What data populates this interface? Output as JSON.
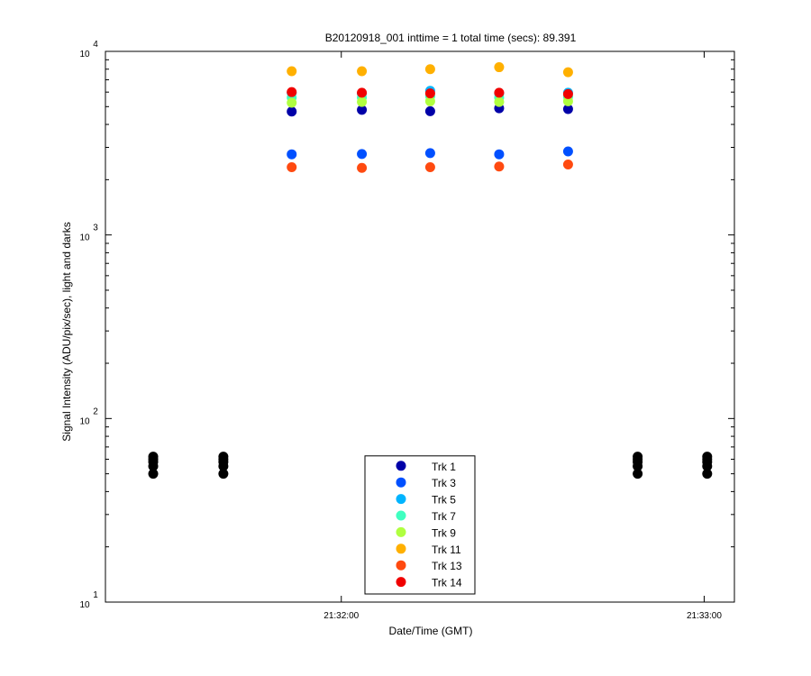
{
  "chart_data": {
    "type": "scatter",
    "title": "B20120918_001 inttime = 1 total time (secs): 89.391",
    "x_label": "Date/Time (GMT)",
    "y_label": "Signal Intensity (ADU/pix/sec), light and darks",
    "log_y": true,
    "grid": false,
    "legend": "bottom",
    "xlim": [
      77481,
      77585
    ],
    "xticks": [
      {
        "value": 77520,
        "label": "21:32:00"
      },
      {
        "value": 77580,
        "label": "21:33:00"
      }
    ],
    "ylim": [
      10,
      10000
    ],
    "yticks": [
      {
        "value": 10,
        "label": "10",
        "exponent": "1"
      },
      {
        "value": 100,
        "label": "10",
        "exponent": "2"
      },
      {
        "value": 1000,
        "label": "10",
        "exponent": "3"
      },
      {
        "value": 10000,
        "label": "10",
        "exponent": "4"
      }
    ],
    "series": [
      {
        "name": "Trk 1",
        "color": "#0000a8",
        "x": [
          77511.8,
          77523.4,
          77534.7,
          77546.1,
          77557.5
        ],
        "values": [
          4700,
          4800,
          4720,
          4900,
          4850
        ]
      },
      {
        "name": "Trk 3",
        "color": "#0050ff",
        "x": [
          77511.8,
          77523.4,
          77534.7,
          77546.1,
          77557.5
        ],
        "values": [
          2750,
          2760,
          2790,
          2750,
          2850
        ]
      },
      {
        "name": "Trk 5",
        "color": "#00b4ff",
        "x": [
          77511.8,
          77523.4,
          77534.7,
          77546.1,
          77557.5
        ],
        "values": [
          5950,
          5900,
          6100,
          5900,
          5950
        ]
      },
      {
        "name": "Trk 7",
        "color": "#40ffc0",
        "x": [
          77511.8,
          77523.4,
          77534.7,
          77546.1,
          77557.5
        ],
        "values": [
          5600,
          5600,
          5700,
          5600,
          5650
        ]
      },
      {
        "name": "Trk 9",
        "color": "#b0ff40",
        "x": [
          77511.8,
          77523.4,
          77534.7,
          77546.1,
          77557.5
        ],
        "values": [
          5250,
          5300,
          5350,
          5300,
          5350
        ]
      },
      {
        "name": "Trk 11",
        "color": "#ffb000",
        "x": [
          77511.8,
          77523.4,
          77534.7,
          77546.1,
          77557.5
        ],
        "values": [
          7800,
          7800,
          8000,
          8200,
          7700
        ]
      },
      {
        "name": "Trk 13",
        "color": "#ff4a10",
        "x": [
          77511.8,
          77523.4,
          77534.7,
          77546.1,
          77557.5
        ],
        "values": [
          2340,
          2320,
          2340,
          2360,
          2420
        ]
      },
      {
        "name": "Trk 14",
        "color": "#f00000",
        "x": [
          77511.8,
          77523.4,
          77534.7,
          77546.1,
          77557.5
        ],
        "values": [
          6000,
          5950,
          5900,
          5950,
          5850
        ]
      },
      {
        "color": "#000000",
        "x": [
          77488.9,
          77488.9,
          77488.9,
          77488.9,
          77488.9,
          77500.5,
          77500.5,
          77500.5,
          77500.5,
          77500.5,
          77569.0,
          77569.0,
          77569.0,
          77569.0,
          77569.0,
          77580.5,
          77580.5,
          77580.5,
          77580.5,
          77580.5
        ],
        "values": [
          50,
          55,
          58,
          60,
          62,
          50,
          55,
          58,
          60,
          62,
          50,
          55,
          58,
          60,
          62,
          50,
          55,
          58,
          60,
          62
        ]
      }
    ]
  }
}
